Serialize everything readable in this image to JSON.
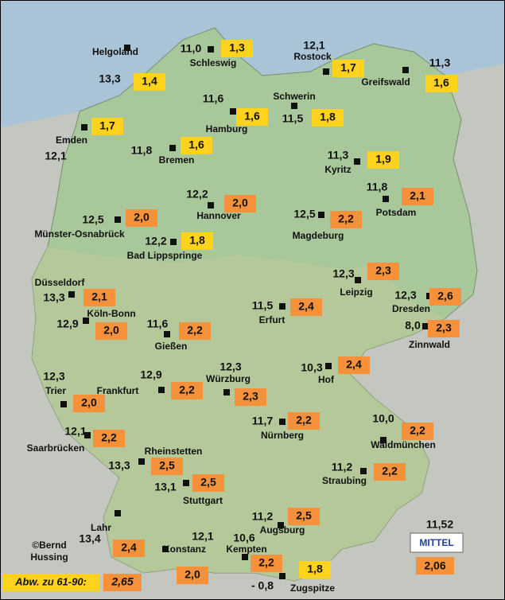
{
  "stations": [
    {
      "name": "Helgoland",
      "temp": "13,3",
      "deviation": "1,4"
    },
    {
      "name": "Schleswig",
      "temp": "11,0",
      "deviation": "1,3"
    },
    {
      "name": "Rostock",
      "temp": "12,1",
      "deviation": "1,7"
    },
    {
      "name": "Greifswald",
      "temp": "11,3",
      "deviation": "1,6"
    },
    {
      "name": "Emden",
      "temp": "12,1",
      "deviation": "1,7"
    },
    {
      "name": "Hamburg",
      "temp": "11,6",
      "deviation": "1,6"
    },
    {
      "name": "Schwerin",
      "temp": "11,5",
      "deviation": "1,8"
    },
    {
      "name": "Bremen",
      "temp": "11,8",
      "deviation": "1,6"
    },
    {
      "name": "Kyritz",
      "temp": "11,3",
      "deviation": "1,9"
    },
    {
      "name": "Potsdam",
      "temp": "11,8",
      "deviation": "2,1"
    },
    {
      "name": "Hannover",
      "temp": "12,2",
      "deviation": "2,0"
    },
    {
      "name": "Münster-Osnabrück",
      "temp": "12,5",
      "deviation": "2,0"
    },
    {
      "name": "Magdeburg",
      "temp": "12,5",
      "deviation": "2,2"
    },
    {
      "name": "Bad Lippspringe",
      "temp": "12,2",
      "deviation": "1,8"
    },
    {
      "name": "Leipzig",
      "temp": "12,3",
      "deviation": "2,3"
    },
    {
      "name": "Düsseldorf",
      "temp": "13,3",
      "deviation": "2,1"
    },
    {
      "name": "Dresden",
      "temp": "12,3",
      "deviation": "2,6"
    },
    {
      "name": "Erfurt",
      "temp": "11,5",
      "deviation": "2,4"
    },
    {
      "name": "Köln-Bonn",
      "temp": "12,9",
      "deviation": "2,0"
    },
    {
      "name": "Zinnwald",
      "temp": "8,0",
      "deviation": "2,3"
    },
    {
      "name": "Gießen",
      "temp": "11,6",
      "deviation": "2,2"
    },
    {
      "name": "Hof",
      "temp": "10,3",
      "deviation": "2,4"
    },
    {
      "name": "Trier",
      "temp": "12,3",
      "deviation": "2,0"
    },
    {
      "name": "Frankfurt",
      "temp": "12,9",
      "deviation": "2,2"
    },
    {
      "name": "Würzburg",
      "temp": "12,3",
      "deviation": "2,3"
    },
    {
      "name": "Nürnberg",
      "temp": "11,7",
      "deviation": "2,2"
    },
    {
      "name": "Waldmünchen",
      "temp": "10,0",
      "deviation": "2,2"
    },
    {
      "name": "Saarbrücken",
      "temp": "12,1",
      "deviation": "2,2"
    },
    {
      "name": "Rheinstetten",
      "temp": "13,3",
      "deviation": "2,5"
    },
    {
      "name": "Straubing",
      "temp": "11,2",
      "deviation": "2,2"
    },
    {
      "name": "Stuttgart",
      "temp": "13,1",
      "deviation": "2,5"
    },
    {
      "name": "Augsburg",
      "temp": "11,2",
      "deviation": "2,5"
    },
    {
      "name": "Lahr",
      "temp": "13,4",
      "deviation": "2,4"
    },
    {
      "name": "Konstanz",
      "temp": "12,1",
      "deviation": "2,0"
    },
    {
      "name": "Kempten",
      "temp": "10,6",
      "deviation": "2,2"
    },
    {
      "name": "Zugspitze",
      "temp": "- 0,8",
      "deviation": "1,8"
    }
  ],
  "mean": {
    "label": "MITTEL",
    "temp": "11,52",
    "deviation": "2,06"
  },
  "reference": {
    "label": "Abw. zu 61-90:",
    "value": "2,65"
  },
  "credit": [
    "©Bernd",
    "Hussing"
  ]
}
